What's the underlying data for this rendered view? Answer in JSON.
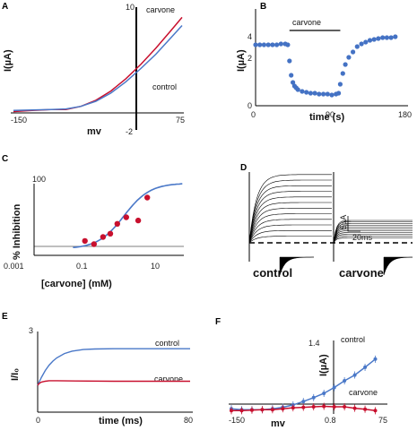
{
  "colors": {
    "red": "#c8102e",
    "blue": "#4a78c8",
    "dot_blue": "#4472c4",
    "black": "#000000"
  },
  "panels": {
    "A": {
      "label": "A",
      "xlabel": "mv",
      "ylabel": "I(µA)",
      "ticks": [
        "10",
        "-150",
        "75",
        "-2"
      ],
      "legend": [
        "carvone",
        "control"
      ]
    },
    "B": {
      "label": "B",
      "xlabel": "time (s)",
      "ylabel": "I(µA)",
      "xticks": [
        "0",
        "90",
        "180"
      ],
      "yticks": [
        "0",
        "2",
        "4"
      ],
      "bar_label": "carvone"
    },
    "C": {
      "label": "C",
      "xlabel": "[carvone] (mM)",
      "ylabel": "% Inhibition",
      "xticks": [
        "0.001",
        "0.1",
        "10"
      ],
      "ytick": "100"
    },
    "D": {
      "label": "D",
      "scale_y": "5µA",
      "scale_x": "20ms",
      "left_label": "control",
      "right_label": "carvone"
    },
    "E": {
      "label": "E",
      "xlabel": "time (ms)",
      "ylabel": "I/I₀",
      "xticks": [
        "0",
        "80"
      ],
      "ytick": "3",
      "series_labels": [
        "control",
        "carvone"
      ]
    },
    "F": {
      "label": "F",
      "xlabel": "mv",
      "ylabel": "I(µA)",
      "ticks": [
        "1.4",
        "-150",
        "0.8",
        "75"
      ],
      "series_labels": [
        "control",
        "carvone"
      ]
    }
  },
  "chart_data": [
    {
      "panel": "A",
      "type": "line",
      "xlabel": "mv",
      "ylabel": "I(µA)",
      "xlim": [
        -150,
        75
      ],
      "ylim": [
        -2,
        10
      ],
      "series": [
        {
          "name": "carvone",
          "color": "#c8102e",
          "x": [
            -150,
            -125,
            -100,
            -80,
            -60,
            -40,
            -20,
            0,
            20,
            40,
            60,
            75
          ],
          "y": [
            -0.2,
            -0.1,
            0,
            0,
            0.3,
            0.9,
            1.8,
            3.0,
            4.4,
            6.0,
            7.7,
            9.0
          ]
        },
        {
          "name": "control",
          "color": "#4a78c8",
          "x": [
            -150,
            -125,
            -100,
            -80,
            -60,
            -40,
            -20,
            0,
            20,
            40,
            60,
            75
          ],
          "y": [
            -0.1,
            -0.05,
            0,
            0.05,
            0.3,
            0.8,
            1.6,
            2.7,
            4.0,
            5.4,
            7.0,
            8.2
          ]
        }
      ]
    },
    {
      "panel": "B",
      "type": "scatter",
      "xlabel": "time (s)",
      "ylabel": "I(µA)",
      "xlim": [
        0,
        180
      ],
      "ylim": [
        0,
        4
      ],
      "annotation": "carvone",
      "bar_x": [
        40,
        100
      ],
      "series": [
        {
          "name": "",
          "color": "#4472c4",
          "x": [
            0,
            5,
            10,
            15,
            20,
            25,
            30,
            35,
            38,
            40,
            42,
            44,
            46,
            48,
            50,
            55,
            60,
            65,
            70,
            75,
            80,
            85,
            90,
            95,
            98,
            100,
            103,
            106,
            110,
            115,
            120,
            125,
            130,
            135,
            140,
            145,
            150,
            155,
            160,
            165
          ],
          "y": [
            3.4,
            3.4,
            3.4,
            3.4,
            3.4,
            3.4,
            3.45,
            3.45,
            3.4,
            2.5,
            1.7,
            1.3,
            1.1,
            1.0,
            0.9,
            0.8,
            0.75,
            0.7,
            0.7,
            0.65,
            0.65,
            0.65,
            0.6,
            0.65,
            0.7,
            1.2,
            1.8,
            2.3,
            2.7,
            3.0,
            3.3,
            3.45,
            3.55,
            3.65,
            3.7,
            3.75,
            3.8,
            3.8,
            3.8,
            3.85
          ]
        }
      ]
    },
    {
      "panel": "C",
      "type": "scatter",
      "xlabel": "[carvone] (mM)",
      "ylabel": "% Inhibition",
      "xlim": [
        0.001,
        100
      ],
      "xscale": "log",
      "ylim": [
        -10,
        110
      ],
      "points": {
        "color": "#c8102e",
        "x": [
          0.05,
          0.1,
          0.2,
          0.35,
          0.6,
          1.2,
          3.0,
          6.0
        ],
        "y": [
          12,
          7,
          18,
          23,
          38,
          48,
          43,
          78
        ]
      },
      "fit": {
        "color": "#4a78c8",
        "ec50": 1.0,
        "hill": 1.0,
        "min": 0,
        "max": 100
      }
    },
    {
      "panel": "D",
      "type": "line",
      "series": [
        {
          "name": "control",
          "steady": [
            0.3,
            0.55,
            0.8,
            1.05,
            1.3,
            1.55,
            1.8,
            2.05,
            2.3,
            2.55,
            2.8,
            3.05
          ]
        },
        {
          "name": "carvone",
          "steady": [
            0.22,
            0.3,
            0.38,
            0.46,
            0.54,
            0.62,
            0.7,
            0.78,
            0.86,
            0.94,
            1.0
          ]
        }
      ]
    },
    {
      "panel": "E",
      "type": "line",
      "xlabel": "time (ms)",
      "ylabel": "I/I₀",
      "xlim": [
        0,
        80
      ],
      "ylim": [
        0,
        3
      ],
      "series": [
        {
          "name": "control",
          "color": "#4a78c8",
          "x": [
            0,
            1,
            2,
            4,
            6,
            8,
            10,
            14,
            18,
            24,
            30,
            40,
            50,
            60,
            70,
            80
          ],
          "y": [
            1.0,
            1.15,
            1.3,
            1.55,
            1.75,
            1.9,
            2.02,
            2.18,
            2.27,
            2.33,
            2.35,
            2.36,
            2.36,
            2.36,
            2.36,
            2.36
          ]
        },
        {
          "name": "carvone",
          "color": "#c8102e",
          "x": [
            0,
            1,
            2,
            4,
            6,
            8,
            10,
            20,
            40,
            60,
            80
          ],
          "y": [
            1.0,
            1.08,
            1.12,
            1.15,
            1.17,
            1.17,
            1.17,
            1.16,
            1.15,
            1.15,
            1.15
          ]
        }
      ]
    },
    {
      "panel": "F",
      "type": "line",
      "xlabel": "mv",
      "ylabel": "I(µA)",
      "xlim": [
        -150,
        75
      ],
      "ylim": [
        -0.2,
        1.4
      ],
      "series": [
        {
          "name": "control",
          "color": "#4a78c8",
          "x": [
            -150,
            -135,
            -120,
            -105,
            -90,
            -75,
            -60,
            -45,
            -30,
            -15,
            0,
            15,
            30,
            45,
            60
          ],
          "y": [
            0.02,
            0.0,
            0.0,
            0.0,
            0.02,
            0.05,
            0.1,
            0.17,
            0.25,
            0.34,
            0.46,
            0.6,
            0.72,
            0.88,
            1.05
          ]
        },
        {
          "name": "carvone",
          "color": "#c8102e",
          "x": [
            -150,
            -135,
            -120,
            -105,
            -90,
            -75,
            -60,
            -45,
            -30,
            -15,
            0,
            15,
            30,
            45,
            60
          ],
          "y": [
            -0.02,
            -0.02,
            -0.01,
            0.0,
            0.0,
            0.02,
            0.04,
            0.05,
            0.06,
            0.07,
            0.06,
            0.06,
            0.03,
            0.01,
            -0.02
          ]
        }
      ]
    }
  ]
}
